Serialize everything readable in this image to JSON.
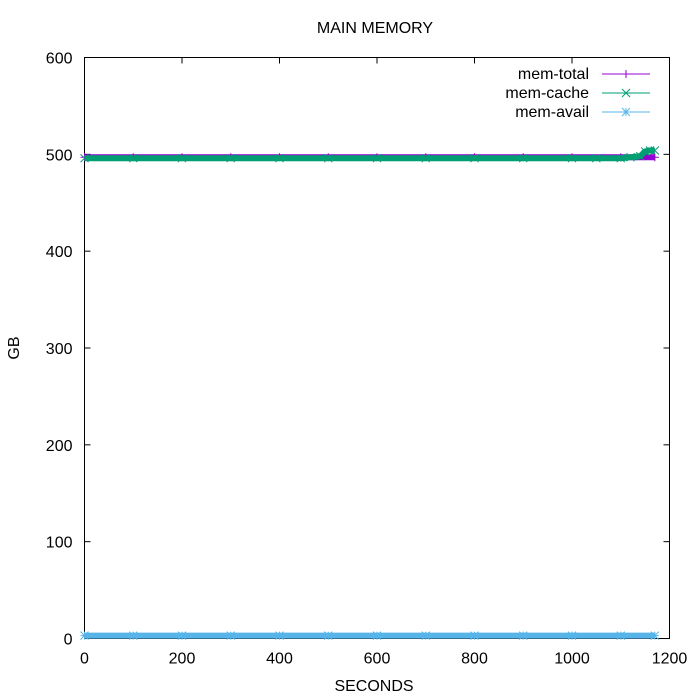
{
  "chart_data": {
    "type": "line",
    "title": "MAIN MEMORY",
    "xlabel": "SECONDS",
    "ylabel": "GB",
    "xlim": [
      0,
      1200
    ],
    "ylim": [
      0,
      600
    ],
    "xticks": [
      0,
      200,
      400,
      600,
      800,
      1000,
      1200
    ],
    "yticks": [
      0,
      100,
      200,
      300,
      400,
      500,
      600
    ],
    "grid": false,
    "legend_position": "top-right",
    "series": [
      {
        "name": "mem-total",
        "color": "#9400d3",
        "marker": "plus",
        "x": [
          0,
          100,
          200,
          300,
          400,
          500,
          600,
          700,
          800,
          900,
          1000,
          1100,
          1170
        ],
        "y": [
          497,
          497,
          497,
          497,
          497,
          497,
          497,
          497,
          497,
          497,
          497,
          497,
          497
        ]
      },
      {
        "name": "mem-cache",
        "color": "#009e73",
        "marker": "cross",
        "x": [
          0,
          100,
          200,
          300,
          400,
          500,
          600,
          700,
          800,
          900,
          1000,
          1050,
          1100,
          1120,
          1140,
          1150,
          1160,
          1170
        ],
        "y": [
          496,
          496,
          496,
          496,
          496,
          496,
          496,
          496,
          496,
          496,
          496,
          496,
          496,
          497,
          498,
          503,
          504,
          504
        ]
      },
      {
        "name": "mem-avail",
        "color": "#56b4e9",
        "marker": "star",
        "x": [
          0,
          100,
          200,
          300,
          400,
          500,
          600,
          700,
          800,
          900,
          1000,
          1100,
          1170
        ],
        "y": [
          3,
          3,
          3,
          3,
          3,
          3,
          3,
          3,
          3,
          3,
          3,
          3,
          3
        ]
      }
    ]
  }
}
